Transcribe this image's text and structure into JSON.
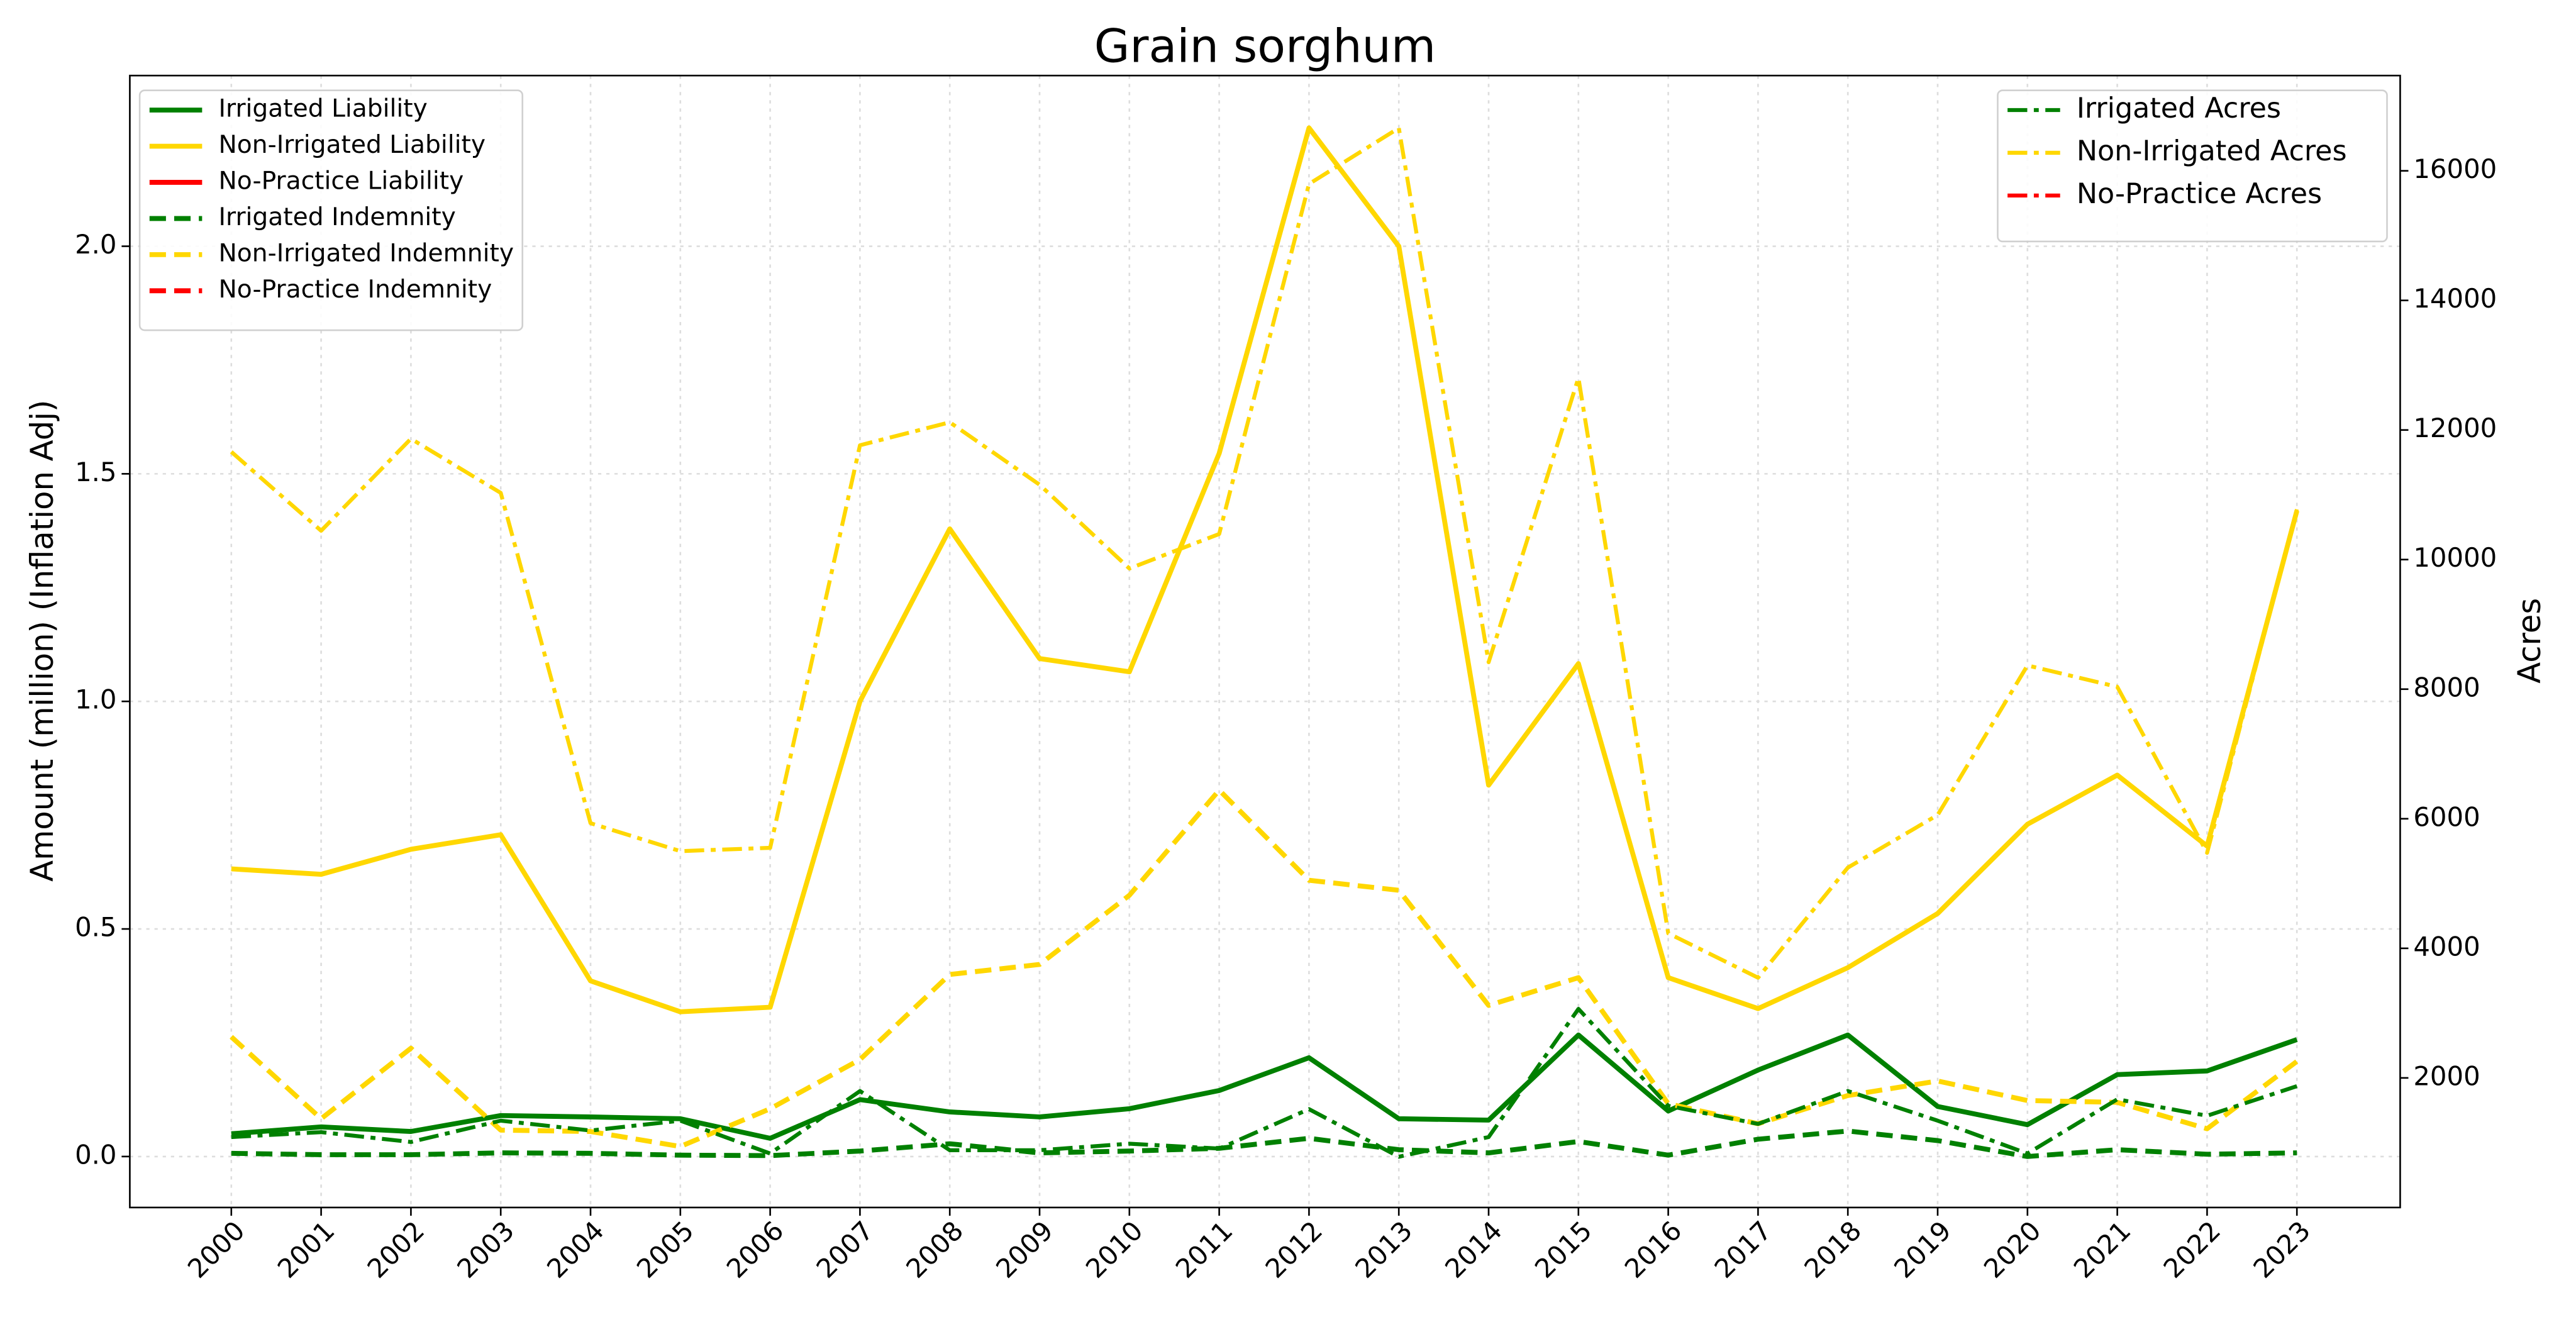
{
  "chart_data": {
    "type": "line",
    "title": "Grain sorghum",
    "ylabel": "Amount (million) (Inflation Adj)",
    "y2label": "Acres",
    "x": [
      2000,
      2001,
      2002,
      2003,
      2004,
      2005,
      2006,
      2007,
      2008,
      2009,
      2010,
      2011,
      2012,
      2013,
      2014,
      2015,
      2016,
      2017,
      2018,
      2019,
      2020,
      2021,
      2022,
      2023
    ],
    "xlim": [
      1998.87,
      2024.15
    ],
    "xticks": [
      2000,
      2001,
      2002,
      2003,
      2004,
      2005,
      2006,
      2007,
      2008,
      2009,
      2010,
      2011,
      2012,
      2013,
      2014,
      2015,
      2016,
      2017,
      2018,
      2019,
      2020,
      2021,
      2022,
      2023
    ],
    "ylim": [
      -0.112,
      2.375
    ],
    "yticks": [
      {
        "value": 0,
        "label": "0.0"
      },
      0.5,
      {
        "value": 1,
        "label": "1.0"
      },
      1.5,
      {
        "value": 2,
        "label": "2.0"
      }
    ],
    "y2lim": [
      0,
      17470
    ],
    "y2ticks": [
      2000,
      4000,
      6000,
      8000,
      10000,
      12000,
      14000,
      16000
    ],
    "grid": true,
    "legend_loc": "upper left",
    "legend2_loc": "upper right",
    "series": [
      {
        "name": "Irrigated Liability",
        "color": "#008000",
        "linestyle": "solid",
        "values": [
          0.05,
          0.065,
          0.055,
          0.09,
          0.087,
          0.083,
          0.04,
          0.125,
          0.098,
          0.087,
          0.105,
          0.145,
          0.217,
          0.083,
          0.08,
          0.267,
          0.1,
          0.19,
          0.267,
          0.11,
          0.07,
          0.18,
          0.188,
          0.257
        ]
      },
      {
        "name": "Non-Irrigated Liability",
        "color": "#ffd700",
        "linestyle": "solid",
        "values": [
          0.632,
          0.62,
          0.675,
          0.707,
          0.386,
          0.318,
          0.328,
          1.0,
          1.379,
          1.094,
          1.065,
          1.545,
          2.26,
          2.0,
          0.816,
          1.083,
          0.393,
          0.325,
          0.415,
          0.534,
          0.73,
          0.838,
          0.682,
          1.419
        ]
      },
      {
        "name": "No-Practice Liability",
        "color": "#ff0000",
        "linestyle": "solid",
        "values": [
          null,
          null,
          null,
          null,
          null,
          null,
          null,
          null,
          null,
          null,
          null,
          null,
          null,
          null,
          null,
          null,
          null,
          null,
          null,
          null,
          null,
          null,
          null,
          null
        ]
      },
      {
        "name": "Irrigated Indemnity",
        "color": "#008000",
        "linestyle": "dashed",
        "values": [
          0.007,
          0.004,
          0.004,
          0.008,
          0.007,
          0.003,
          0.002,
          0.012,
          0.028,
          0.008,
          0.012,
          0.018,
          0.04,
          0.015,
          0.008,
          0.033,
          0.003,
          0.038,
          0.056,
          0.035,
          0.0,
          0.015,
          0.005,
          0.008
        ]
      },
      {
        "name": "Non-Irrigated Indemnity",
        "color": "#ffd700",
        "linestyle": "dashed",
        "values": [
          0.263,
          0.083,
          0.238,
          0.058,
          0.055,
          0.022,
          0.105,
          0.213,
          0.4,
          0.422,
          0.574,
          0.805,
          0.607,
          0.585,
          0.332,
          0.393,
          0.116,
          0.072,
          0.134,
          0.166,
          0.123,
          0.119,
          0.061,
          0.209
        ]
      },
      {
        "name": "No-Practice Indemnity",
        "color": "#ff0000",
        "linestyle": "dashed",
        "values": [
          null,
          null,
          null,
          null,
          null,
          null,
          null,
          null,
          null,
          null,
          null,
          null,
          null,
          null,
          null,
          null,
          null,
          null,
          null,
          null,
          null,
          null,
          null,
          null
        ]
      },
      {
        "name": "Irrigated Acres",
        "color": "#008000",
        "linestyle": "dashdot",
        "axis": "y2",
        "values": [
          1087,
          1163,
          1011,
          1340,
          1188,
          1340,
          833,
          1797,
          884,
          884,
          985,
          909,
          1518,
          783,
          1087,
          3065,
          1569,
          1290,
          1797,
          1340,
          833,
          1670,
          1416,
          1873
        ]
      },
      {
        "name": "Non-Irrigated Acres",
        "color": "#ffd700",
        "linestyle": "dashdot",
        "axis": "y2",
        "values": [
          11663,
          10445,
          11865,
          11029,
          5931,
          5500,
          5551,
          11764,
          12119,
          11155,
          9862,
          10395,
          15797,
          16660,
          8416,
          12804,
          4232,
          3547,
          5246,
          6058,
          8366,
          8036,
          5474,
          10775
        ]
      },
      {
        "name": "No-Practice Acres",
        "color": "#ff0000",
        "linestyle": "dashdot",
        "axis": "y2",
        "values": [
          null,
          null,
          null,
          null,
          null,
          null,
          null,
          null,
          null,
          null,
          null,
          null,
          null,
          null,
          null,
          null,
          null,
          null,
          null,
          null,
          null,
          null,
          null,
          null
        ]
      }
    ]
  }
}
